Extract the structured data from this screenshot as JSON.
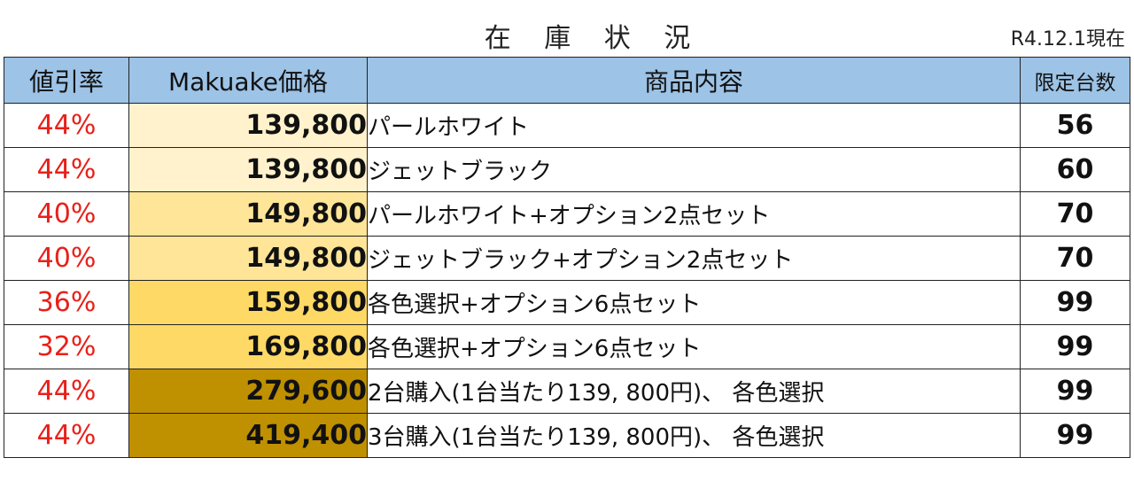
{
  "title": "在 庫 状 況",
  "date": "R4.12.1現在",
  "headers": {
    "discount": "値引率",
    "price": "Makuake価格",
    "content": "商品内容",
    "limit": "限定台数"
  },
  "rows": [
    {
      "rate": "44%",
      "price": "139,800",
      "content": "パールホワイト",
      "limit": "56"
    },
    {
      "rate": "44%",
      "price": "139,800",
      "content": "ジェットブラック",
      "limit": "60"
    },
    {
      "rate": "40%",
      "price": "149,800",
      "content": "パールホワイト+オプション2点セット",
      "limit": "70"
    },
    {
      "rate": "40%",
      "price": "149,800",
      "content": "ジェットブラック+オプション2点セット",
      "limit": "70"
    },
    {
      "rate": "36%",
      "price": "159,800",
      "content": "各色選択+オプション6点セット",
      "limit": "99"
    },
    {
      "rate": "32%",
      "price": "169,800",
      "content": "各色選択+オプション6点セット",
      "limit": "99"
    },
    {
      "rate": "44%",
      "price": "279,600",
      "content": "2台購入(1台当たり139, 800円)、 各色選択",
      "limit": "99"
    },
    {
      "rate": "44%",
      "price": "419,400",
      "content": "3台購入(1台当たり139, 800円)、 各色選択",
      "limit": "99"
    }
  ],
  "colors": {
    "header_bg": "#9dc3e6",
    "rate_text": "#e8201a",
    "price_tier_1": "#fff2cc",
    "price_tier_2": "#ffe598",
    "price_tier_3": "#ffd966",
    "price_tier_4": "#bf9000"
  }
}
